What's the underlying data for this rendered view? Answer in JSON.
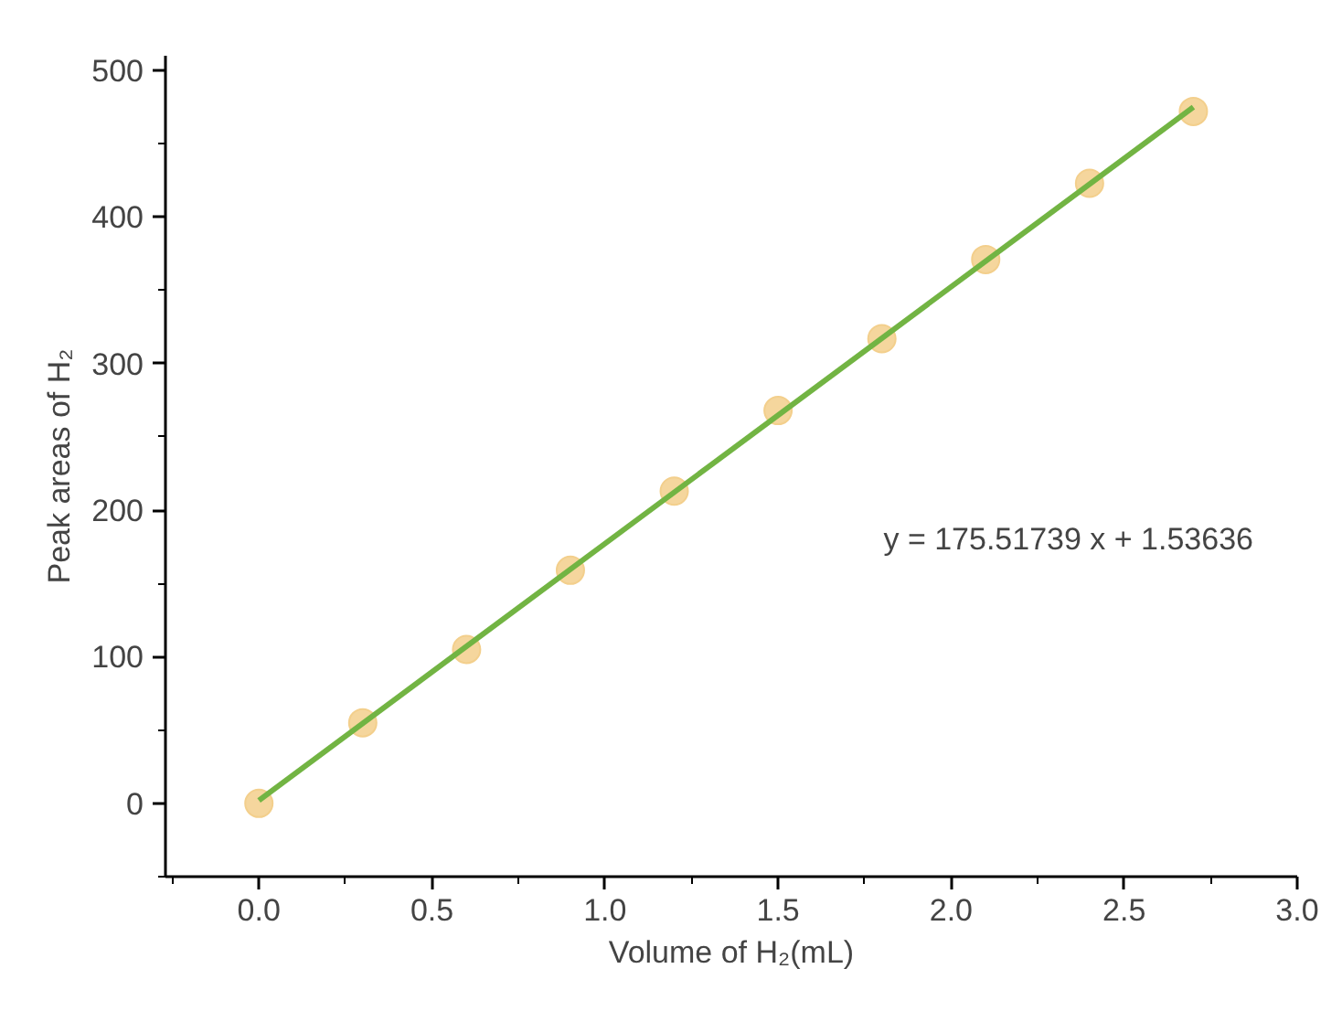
{
  "chart_data": {
    "type": "scatter",
    "xlabel": "Volume of H₂(mL)",
    "ylabel": "Peak areas of H₂",
    "x": [
      0.0,
      0.3,
      0.6,
      0.9,
      1.2,
      1.5,
      1.8,
      2.1,
      2.4,
      2.7
    ],
    "series": [
      {
        "color": "#f3cf8c",
        "marker": "circle",
        "values": [
          0,
          55,
          105,
          159,
          213,
          268,
          317,
          371,
          423,
          472
        ]
      },
      {
        "type": "line",
        "color": "#72b443",
        "marker": "none",
        "x": [
          0.0,
          2.7
        ],
        "values": [
          2,
          475
        ]
      }
    ],
    "annotations": [
      "y = 175.51739 x + 1.53636"
    ],
    "xlim": [
      -0.27,
      3.0
    ],
    "ylim": [
      -50,
      510
    ],
    "xticks": [
      {
        "value": -0.25,
        "label": null
      },
      {
        "value": 0,
        "label": "0.0"
      },
      {
        "value": 0.25,
        "label": null
      },
      0.5,
      {
        "value": 0.75,
        "label": null
      },
      {
        "value": 1,
        "label": "1.0"
      },
      {
        "value": 1.25,
        "label": null
      },
      1.5,
      {
        "value": 1.75,
        "label": null
      },
      {
        "value": 2,
        "label": "2.0"
      },
      {
        "value": 2.25,
        "label": null
      },
      2.5,
      {
        "value": 2.75,
        "label": null
      },
      {
        "value": 3,
        "label": "3.0"
      }
    ],
    "yticks": [
      {
        "value": -50,
        "label": null
      },
      0,
      {
        "value": 50,
        "label": null
      },
      100,
      {
        "value": 150,
        "label": null
      },
      200,
      {
        "value": 250,
        "label": null
      },
      300,
      {
        "value": 350,
        "label": null
      },
      400,
      {
        "value": 450,
        "label": null
      },
      500
    ],
    "grid": false
  }
}
